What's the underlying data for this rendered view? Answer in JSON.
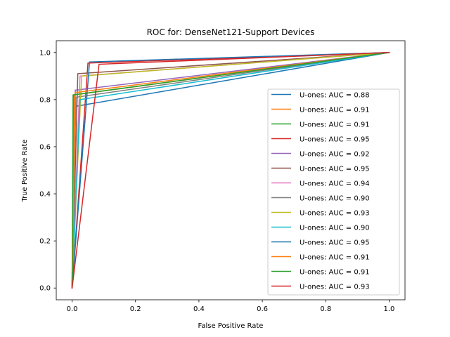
{
  "chart_data": {
    "type": "line",
    "title": "ROC for: DenseNet121-Support Devices",
    "xlabel": "False Positive Rate",
    "ylabel": "True Positive Rate",
    "xlim": [
      -0.05,
      1.05
    ],
    "ylim": [
      -0.05,
      1.05
    ],
    "xticks": [
      0.0,
      0.2,
      0.4,
      0.6,
      0.8,
      1.0
    ],
    "yticks": [
      0.0,
      0.2,
      0.4,
      0.6,
      0.8,
      1.0
    ],
    "xtick_labels": [
      "0.0",
      "0.2",
      "0.4",
      "0.6",
      "0.8",
      "1.0"
    ],
    "ytick_labels": [
      "0.0",
      "0.2",
      "0.4",
      "0.6",
      "0.8",
      "1.0"
    ],
    "grid": false,
    "legend_position": "lower-right",
    "series": [
      {
        "name": "U-ones: AUC = 0.88",
        "color": "#1f77b4",
        "x": [
          0,
          0.005,
          1
        ],
        "y": [
          0,
          0.77,
          1
        ]
      },
      {
        "name": "U-ones: AUC = 0.91",
        "color": "#ff7f0e",
        "x": [
          0,
          0.007,
          1
        ],
        "y": [
          0,
          0.82,
          1
        ]
      },
      {
        "name": "U-ones: AUC = 0.91",
        "color": "#2ca02c",
        "x": [
          0,
          0.004,
          1
        ],
        "y": [
          0,
          0.82,
          1
        ]
      },
      {
        "name": "U-ones: AUC = 0.95",
        "color": "#d62728",
        "x": [
          0,
          0.05,
          1
        ],
        "y": [
          0,
          0.955,
          1
        ]
      },
      {
        "name": "U-ones: AUC = 0.92",
        "color": "#9467bd",
        "x": [
          0,
          0.01,
          1
        ],
        "y": [
          0,
          0.84,
          1
        ]
      },
      {
        "name": "U-ones: AUC = 0.95",
        "color": "#8c564b",
        "x": [
          0,
          0.018,
          1
        ],
        "y": [
          0,
          0.91,
          1
        ]
      },
      {
        "name": "U-ones: AUC = 0.94",
        "color": "#e377c2",
        "x": [
          0,
          0.025,
          1
        ],
        "y": [
          0,
          0.9,
          1
        ]
      },
      {
        "name": "U-ones: AUC = 0.90",
        "color": "#7f7f7f",
        "x": [
          0,
          0.012,
          1
        ],
        "y": [
          0,
          0.81,
          1
        ]
      },
      {
        "name": "U-ones: AUC = 0.93",
        "color": "#bcbd22",
        "x": [
          0,
          0.03,
          1
        ],
        "y": [
          0,
          0.9,
          1
        ]
      },
      {
        "name": "U-ones: AUC = 0.90",
        "color": "#17becf",
        "x": [
          0,
          0.025,
          1
        ],
        "y": [
          0,
          0.8,
          1
        ]
      },
      {
        "name": "U-ones: AUC = 0.95",
        "color": "#1f77b4",
        "x": [
          0,
          0.055,
          1
        ],
        "y": [
          0,
          0.96,
          1
        ]
      },
      {
        "name": "U-ones: AUC = 0.91",
        "color": "#ff7f0e",
        "x": [
          0,
          0.01,
          1
        ],
        "y": [
          0,
          0.83,
          1
        ]
      },
      {
        "name": "U-ones: AUC = 0.91",
        "color": "#2ca02c",
        "x": [
          0,
          0.003,
          1
        ],
        "y": [
          0,
          0.82,
          1
        ]
      },
      {
        "name": "U-ones: AUC = 0.93",
        "color": "#d62728",
        "x": [
          0,
          0.085,
          1
        ],
        "y": [
          0,
          0.95,
          1
        ]
      }
    ]
  }
}
